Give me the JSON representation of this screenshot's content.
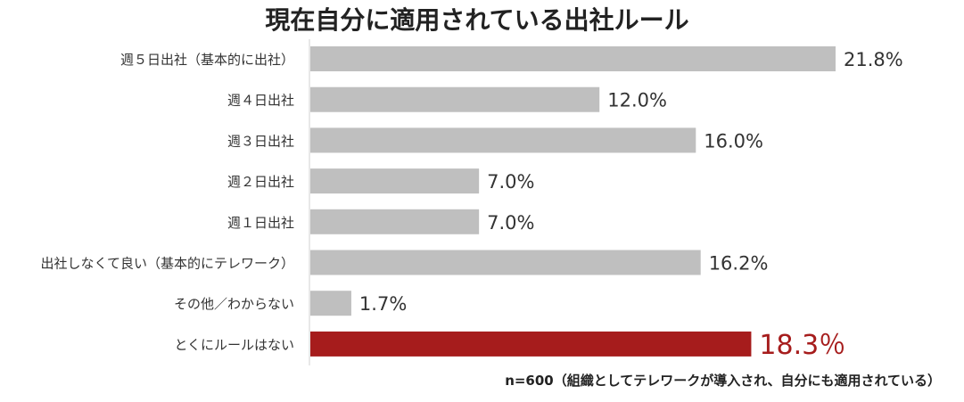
{
  "chart_data": {
    "type": "bar",
    "orientation": "horizontal",
    "title": "現在自分に適用されている出社ルール",
    "categories": [
      "週５日出社（基本的に出社）",
      "週４日出社",
      "週３日出社",
      "週２日出社",
      "週１日出社",
      "出社しなくて良い（基本的にテレワーク）",
      "その他／わからない",
      "とくにルールはない"
    ],
    "values": [
      21.8,
      12.0,
      16.0,
      7.0,
      7.0,
      16.2,
      1.7,
      18.3
    ],
    "value_labels": [
      "21.8%",
      "12.0%",
      "16.0%",
      "7.0%",
      "7.0%",
      "16.2%",
      "1.7%",
      "18.3％"
    ],
    "highlight_index": 7,
    "xlim": [
      0,
      25
    ],
    "grid": false,
    "legend": "none",
    "note": "n=600（組織としてテレワークが導入され、自分にも適用されている）",
    "colors": {
      "bar": "#bfbfbf",
      "highlight_bar": "#a61c1c",
      "highlight_text": "#a61c1c",
      "text": "#333333",
      "axis": "#d0d0d0"
    }
  }
}
